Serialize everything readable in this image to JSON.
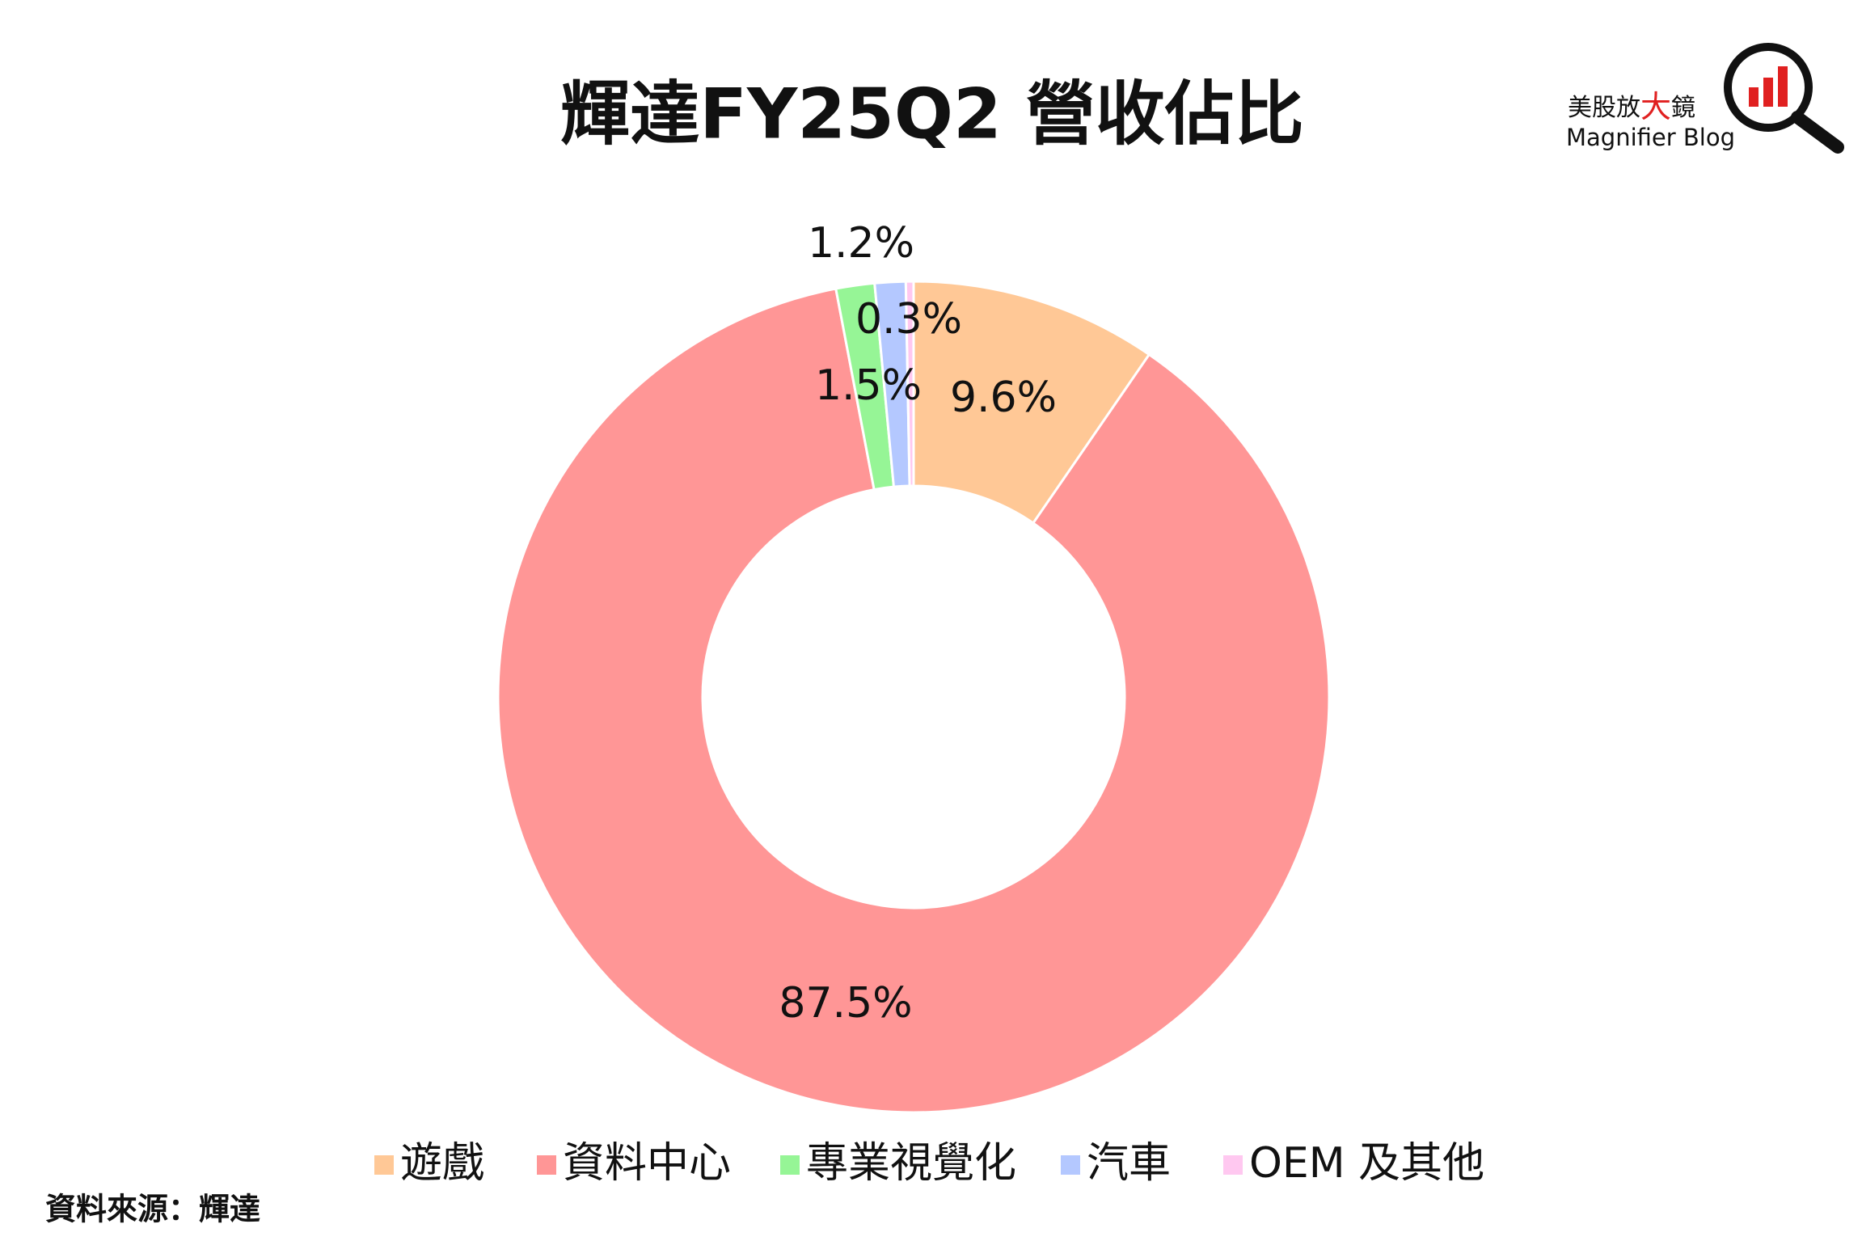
{
  "chart_data": {
    "type": "pie",
    "title": "輝達FY25Q2 營收佔比",
    "categories": [
      "遊戲",
      "資料中心",
      "專業視覺化",
      "汽車",
      "OEM 及其他"
    ],
    "values": [
      9.6,
      87.5,
      1.5,
      1.2,
      0.3
    ],
    "value_labels": [
      "9.6%",
      "87.5%",
      "1.5%",
      "1.2%",
      "0.3%"
    ],
    "colors": [
      "#ffc896",
      "#ff9696",
      "#96f596",
      "#b4c8ff",
      "#ffc8f0"
    ],
    "donut": true,
    "legend": "bottom"
  },
  "logo": {
    "name_parts": [
      "美股放",
      "大",
      "鏡"
    ],
    "subtitle": "Magnifier Blog"
  },
  "source": "資料來源：輝達"
}
